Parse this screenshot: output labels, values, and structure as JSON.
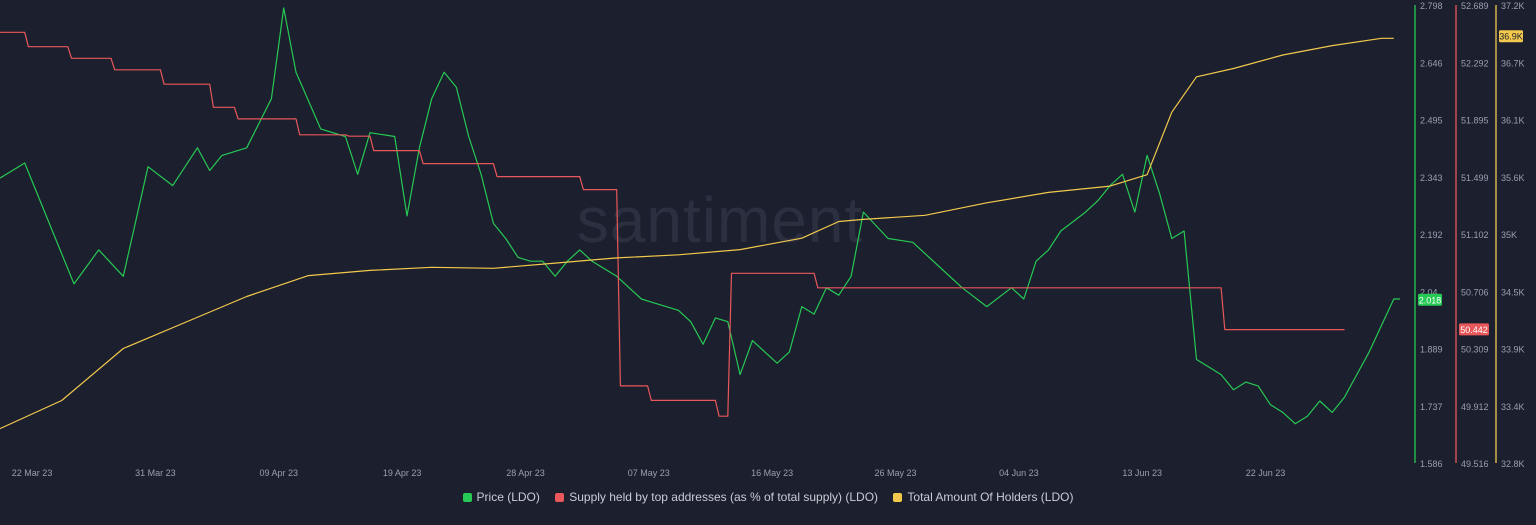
{
  "chart_data": {
    "type": "line",
    "title": "",
    "watermark": "santiment",
    "x_ticks": [
      "22 Mar 23",
      "31 Mar 23",
      "09 Apr 23",
      "19 Apr 23",
      "28 Apr 23",
      "07 May 23",
      "16 May 23",
      "26 May 23",
      "04 Jun 23",
      "13 Jun 23",
      "22 Jun 23"
    ],
    "axes": {
      "price": {
        "ticks": [
          "2.798",
          "2.646",
          "2.495",
          "2.343",
          "2.192",
          "2.04",
          "1.889",
          "1.737",
          "1.586"
        ],
        "range": [
          1.586,
          2.798
        ],
        "color": "#26c953",
        "current_label": "2.018",
        "current": 2.018
      },
      "supply": {
        "ticks": [
          "52.689",
          "52.292",
          "51.895",
          "51.499",
          "51.102",
          "50.706",
          "50.309",
          "49.912",
          "49.516"
        ],
        "range": [
          49.516,
          52.689
        ],
        "color": "#e8575a",
        "current_label": "50.442",
        "current": 50.442
      },
      "holders": {
        "ticks": [
          "37.2K",
          "36.7K",
          "36.1K",
          "35.6K",
          "35K",
          "34.5K",
          "33.9K",
          "33.4K",
          "32.8K"
        ],
        "range": [
          32800,
          37200
        ],
        "color": "#f2c94c",
        "current_label": "36.9K",
        "current": 36900
      }
    },
    "series": [
      {
        "name": "Price (LDO)",
        "axis": "price",
        "color": "#26c953",
        "points": [
          [
            0,
            2.34
          ],
          [
            2,
            2.38
          ],
          [
            4,
            2.22
          ],
          [
            6,
            2.06
          ],
          [
            8,
            2.15
          ],
          [
            10,
            2.08
          ],
          [
            12,
            2.37
          ],
          [
            14,
            2.32
          ],
          [
            16,
            2.42
          ],
          [
            17,
            2.36
          ],
          [
            18,
            2.4
          ],
          [
            20,
            2.42
          ],
          [
            22,
            2.55
          ],
          [
            23,
            2.79
          ],
          [
            24,
            2.62
          ],
          [
            26,
            2.47
          ],
          [
            28,
            2.45
          ],
          [
            29,
            2.35
          ],
          [
            30,
            2.46
          ],
          [
            32,
            2.45
          ],
          [
            33,
            2.24
          ],
          [
            34,
            2.42
          ],
          [
            35,
            2.55
          ],
          [
            36,
            2.62
          ],
          [
            37,
            2.58
          ],
          [
            38,
            2.45
          ],
          [
            39,
            2.35
          ],
          [
            40,
            2.22
          ],
          [
            41,
            2.18
          ],
          [
            42,
            2.13
          ],
          [
            43,
            2.12
          ],
          [
            44,
            2.12
          ],
          [
            45,
            2.08
          ],
          [
            46,
            2.12
          ],
          [
            47,
            2.15
          ],
          [
            48,
            2.12
          ],
          [
            49,
            2.1
          ],
          [
            50,
            2.08
          ],
          [
            51,
            2.05
          ],
          [
            52,
            2.02
          ],
          [
            53,
            2.01
          ],
          [
            54,
            2.0
          ],
          [
            55,
            1.99
          ],
          [
            56,
            1.96
          ],
          [
            57,
            1.9
          ],
          [
            58,
            1.97
          ],
          [
            59,
            1.96
          ],
          [
            60,
            1.82
          ],
          [
            61,
            1.91
          ],
          [
            62,
            1.88
          ],
          [
            63,
            1.85
          ],
          [
            64,
            1.88
          ],
          [
            65,
            2.0
          ],
          [
            66,
            1.98
          ],
          [
            67,
            2.05
          ],
          [
            68,
            2.03
          ],
          [
            69,
            2.08
          ],
          [
            70,
            2.25
          ],
          [
            72,
            2.18
          ],
          [
            74,
            2.17
          ],
          [
            76,
            2.11
          ],
          [
            78,
            2.05
          ],
          [
            80,
            2.0
          ],
          [
            82,
            2.05
          ],
          [
            83,
            2.02
          ],
          [
            84,
            2.12
          ],
          [
            85,
            2.15
          ],
          [
            86,
            2.2
          ],
          [
            88,
            2.25
          ],
          [
            89,
            2.28
          ],
          [
            90,
            2.32
          ],
          [
            91,
            2.35
          ],
          [
            92,
            2.25
          ],
          [
            93,
            2.4
          ],
          [
            94,
            2.3
          ],
          [
            95,
            2.18
          ],
          [
            96,
            2.2
          ],
          [
            97,
            1.86
          ],
          [
            98,
            1.84
          ],
          [
            99,
            1.82
          ],
          [
            100,
            1.78
          ],
          [
            101,
            1.8
          ],
          [
            102,
            1.79
          ],
          [
            103,
            1.74
          ],
          [
            104,
            1.72
          ],
          [
            105,
            1.69
          ],
          [
            106,
            1.71
          ],
          [
            107,
            1.75
          ],
          [
            108,
            1.72
          ],
          [
            109,
            1.76
          ],
          [
            110,
            1.82
          ],
          [
            111,
            1.88
          ],
          [
            112,
            1.95
          ],
          [
            113,
            2.02
          ],
          [
            113.5,
            2.02
          ]
        ]
      },
      {
        "name": "Supply held by top addresses (as % of total supply) (LDO)",
        "axis": "supply",
        "color": "#e8575a",
        "points": [
          [
            0,
            52.5
          ],
          [
            2,
            52.5
          ],
          [
            2.3,
            52.4
          ],
          [
            5.5,
            52.4
          ],
          [
            5.8,
            52.32
          ],
          [
            9,
            52.32
          ],
          [
            9.3,
            52.24
          ],
          [
            13,
            52.24
          ],
          [
            13.3,
            52.14
          ],
          [
            17,
            52.14
          ],
          [
            17.3,
            51.98
          ],
          [
            19,
            51.98
          ],
          [
            19.3,
            51.9
          ],
          [
            24,
            51.9
          ],
          [
            24.3,
            51.79
          ],
          [
            28,
            51.79
          ],
          [
            28.3,
            51.78
          ],
          [
            30,
            51.78
          ],
          [
            30.3,
            51.68
          ],
          [
            34,
            51.68
          ],
          [
            34.3,
            51.59
          ],
          [
            40,
            51.59
          ],
          [
            40.3,
            51.5
          ],
          [
            47,
            51.5
          ],
          [
            47.3,
            51.41
          ],
          [
            50,
            51.41
          ],
          [
            50.3,
            50.05
          ],
          [
            52.5,
            50.05
          ],
          [
            52.8,
            49.95
          ],
          [
            58,
            49.95
          ],
          [
            58.3,
            49.84
          ],
          [
            59,
            49.84
          ],
          [
            59.3,
            50.83
          ],
          [
            66,
            50.83
          ],
          [
            66.3,
            50.73
          ],
          [
            99,
            50.73
          ],
          [
            99.3,
            50.44
          ],
          [
            109,
            50.44
          ]
        ]
      },
      {
        "name": "Total Amount Of Holders (LDO)",
        "axis": "holders",
        "color": "#f2c94c",
        "points": [
          [
            0,
            33.13
          ],
          [
            5,
            33.4
          ],
          [
            10,
            33.9
          ],
          [
            15,
            34.15
          ],
          [
            20,
            34.4
          ],
          [
            25,
            34.6
          ],
          [
            30,
            34.65
          ],
          [
            35,
            34.68
          ],
          [
            40,
            34.67
          ],
          [
            45,
            34.72
          ],
          [
            50,
            34.77
          ],
          [
            55,
            34.8
          ],
          [
            60,
            34.85
          ],
          [
            65,
            34.96
          ],
          [
            68,
            35.12
          ],
          [
            70,
            35.14
          ],
          [
            75,
            35.18
          ],
          [
            80,
            35.3
          ],
          [
            85,
            35.4
          ],
          [
            90,
            35.46
          ],
          [
            93,
            35.57
          ],
          [
            95,
            36.17
          ],
          [
            97,
            36.51
          ],
          [
            100,
            36.59
          ],
          [
            104,
            36.72
          ],
          [
            108,
            36.81
          ],
          [
            112,
            36.88
          ],
          [
            113,
            36.88
          ]
        ]
      }
    ]
  }
}
